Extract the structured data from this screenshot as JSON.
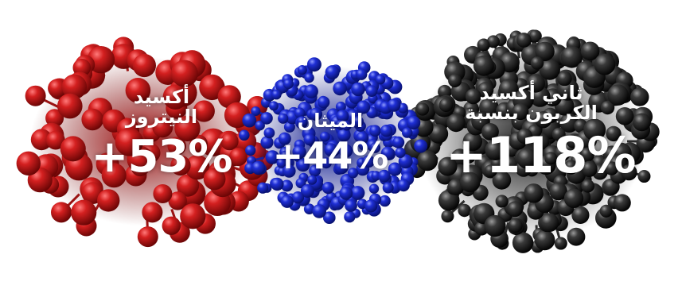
{
  "molecules": [
    {
      "id": "n2o",
      "name": "أكسيد النيتروز",
      "name_line1": "أكسيد",
      "name_line2": "النيتروز",
      "value": "+53%",
      "color": "#c81a1a"
    },
    {
      "id": "ch4",
      "name": "الميثان",
      "value": "+44%",
      "color": "#1a26c8"
    },
    {
      "id": "co2",
      "name": "ثاني أكسيد الكربون بنسبة",
      "name_line1": "ثاني أكسيد",
      "name_line2": "الكربون بنسبة",
      "value": "+118%",
      "color": "#2a2a2a"
    }
  ]
}
